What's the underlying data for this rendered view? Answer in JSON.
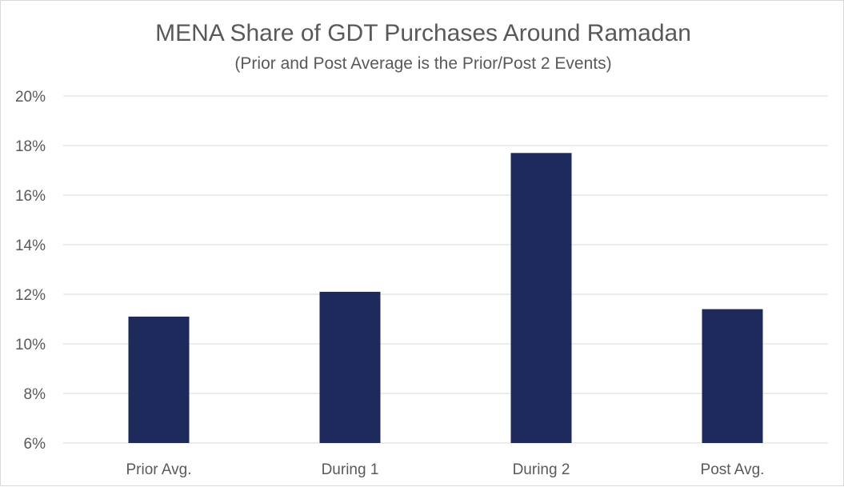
{
  "chart_data": {
    "type": "bar",
    "title": "MENA Share of GDT Purchases Around Ramadan",
    "subtitle": "(Prior and Post Average is the Prior/Post 2 Events)",
    "categories": [
      "Prior Avg.",
      "During 1",
      "During 2",
      "Post Avg."
    ],
    "values": [
      11.1,
      12.1,
      17.7,
      11.4
    ],
    "ylim": [
      6,
      20
    ],
    "yticks": [
      6,
      8,
      10,
      12,
      14,
      16,
      18,
      20
    ],
    "ytick_labels": [
      "6%",
      "8%",
      "10%",
      "12%",
      "14%",
      "16%",
      "18%",
      "20%"
    ],
    "grid": true,
    "bar_color": "#1f2a5c"
  }
}
